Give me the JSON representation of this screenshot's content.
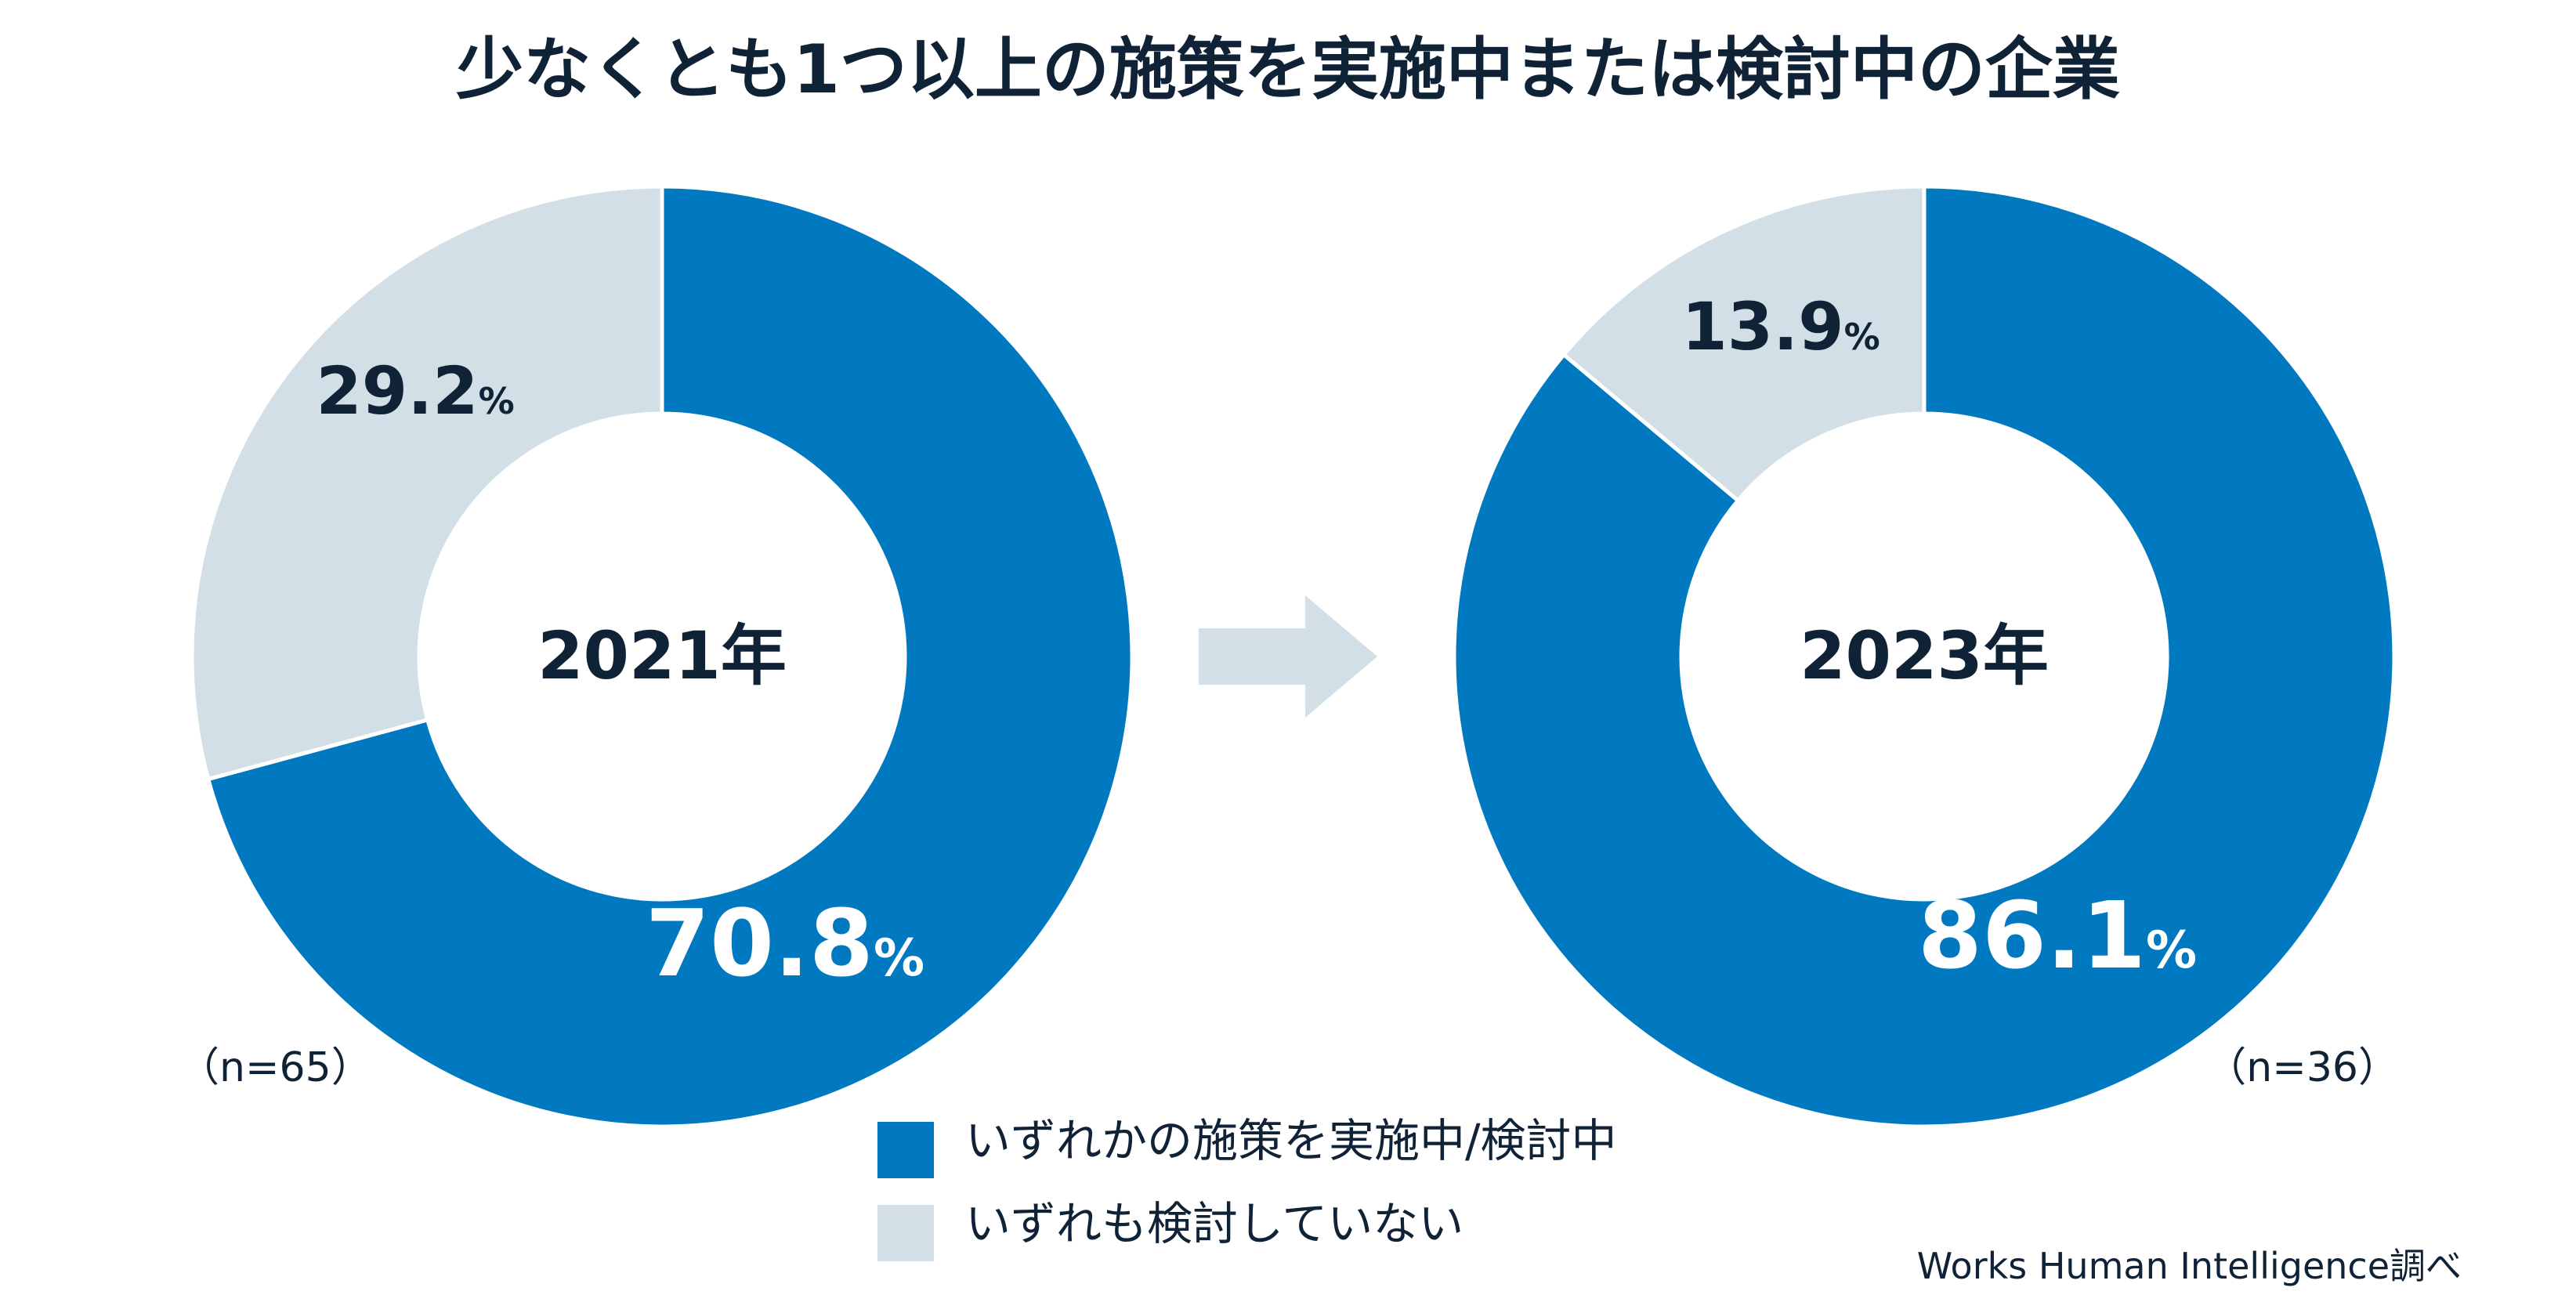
{
  "chart_data": {
    "type": "donut",
    "title": "少なくとも1つ以上の施策を実施中または検討中の企業",
    "legend": {
      "placement": "bottom-center",
      "items": [
        {
          "label": "いずれかの施策を実施中/検討中",
          "color": "#0179c1"
        },
        {
          "label": "いずれも検討していない",
          "color": "#d2dfe6"
        }
      ]
    },
    "charts": [
      {
        "center_label": "2021年",
        "n_label": "（n=65）",
        "slices": [
          {
            "label": "いずれかの施策を実施中/検討中",
            "value": 70.8,
            "number_text": "70.8",
            "unit": "%",
            "color": "#0179c1",
            "text_color": "#ffffff"
          },
          {
            "label": "いずれも検討していない",
            "value": 29.2,
            "number_text": "29.2",
            "unit": "%",
            "color": "#d2dfe6",
            "text_color": "#0f2236"
          }
        ]
      },
      {
        "center_label": "2023年",
        "n_label": "（n=36）",
        "slices": [
          {
            "label": "いずれかの施策を実施中/検討中",
            "value": 86.1,
            "number_text": "86.1",
            "unit": "%",
            "color": "#0179c1",
            "text_color": "#ffffff"
          },
          {
            "label": "いずれも検討していない",
            "value": 13.9,
            "number_text": "13.9",
            "unit": "%",
            "color": "#d2dfe6",
            "text_color": "#0f2236"
          }
        ]
      }
    ],
    "arrow_color": "#d2dfe6",
    "source": "Works Human Intelligence調べ"
  }
}
